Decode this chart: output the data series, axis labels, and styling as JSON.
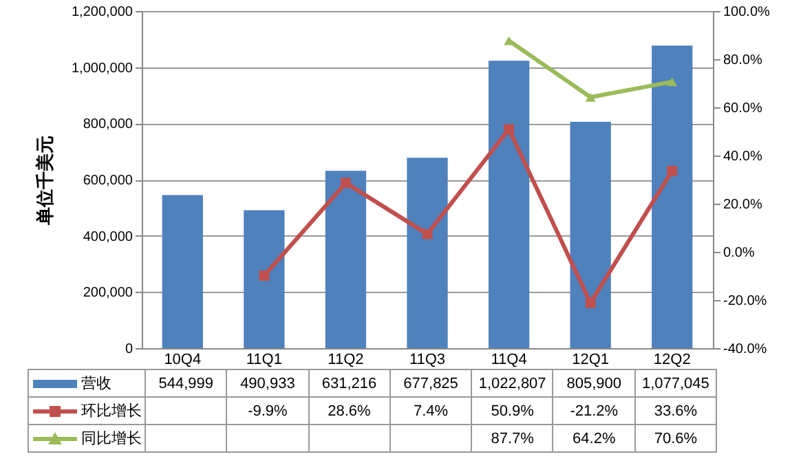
{
  "chart_data": {
    "type": "bar",
    "ylabel": "单位千美元",
    "categories": [
      "10Q4",
      "11Q1",
      "11Q2",
      "11Q3",
      "11Q4",
      "12Q1",
      "12Q2"
    ],
    "series": [
      {
        "name": "营收",
        "color": "#4f81bd",
        "values": [
          544999,
          490933,
          631216,
          677825,
          1022807,
          805900,
          1077045
        ],
        "value_labels": [
          "544,999",
          "490,933",
          "631,216",
          "677,825",
          "1,022,807",
          "805,900",
          "1,077,045"
        ]
      },
      {
        "name": "环比增长",
        "type": "line",
        "axis": "y2",
        "marker": "square",
        "color": "#c0504d",
        "values": [
          null,
          -9.9,
          28.6,
          7.4,
          50.9,
          -21.2,
          33.6
        ],
        "value_labels": [
          null,
          "-9.9%",
          "28.6%",
          "7.4%",
          "50.9%",
          "-21.2%",
          "33.6%"
        ]
      },
      {
        "name": "同比增长",
        "type": "line",
        "axis": "y2",
        "marker": "triangle",
        "color": "#9bbb59",
        "values": [
          null,
          null,
          null,
          null,
          87.7,
          64.2,
          70.6
        ],
        "value_labels": [
          null,
          null,
          null,
          null,
          "87.7%",
          "64.2%",
          "70.6%"
        ]
      }
    ],
    "ylim": [
      0,
      1200000
    ],
    "yticks": [
      {
        "value": 0,
        "label": "0"
      },
      {
        "value": 200000,
        "label": "200,000"
      },
      {
        "value": 400000,
        "label": "400,000"
      },
      {
        "value": 600000,
        "label": "600,000"
      },
      {
        "value": 800000,
        "label": "800,000"
      },
      {
        "value": 1000000,
        "label": "1,000,000"
      },
      {
        "value": 1200000,
        "label": "1,200,000"
      }
    ],
    "y2lim": [
      -40,
      100
    ],
    "y2ticks": [
      {
        "value": -40,
        "label": "-40.0%"
      },
      {
        "value": -20,
        "label": "-20.0%"
      },
      {
        "value": 0,
        "label": "0.0%"
      },
      {
        "value": 20,
        "label": "20.0%"
      },
      {
        "value": 40,
        "label": "40.0%"
      },
      {
        "value": 60,
        "label": "60.0%"
      },
      {
        "value": 80,
        "label": "80.0%"
      },
      {
        "value": 100,
        "label": "100.0%"
      }
    ],
    "grid": "y",
    "legend": "bottom"
  }
}
